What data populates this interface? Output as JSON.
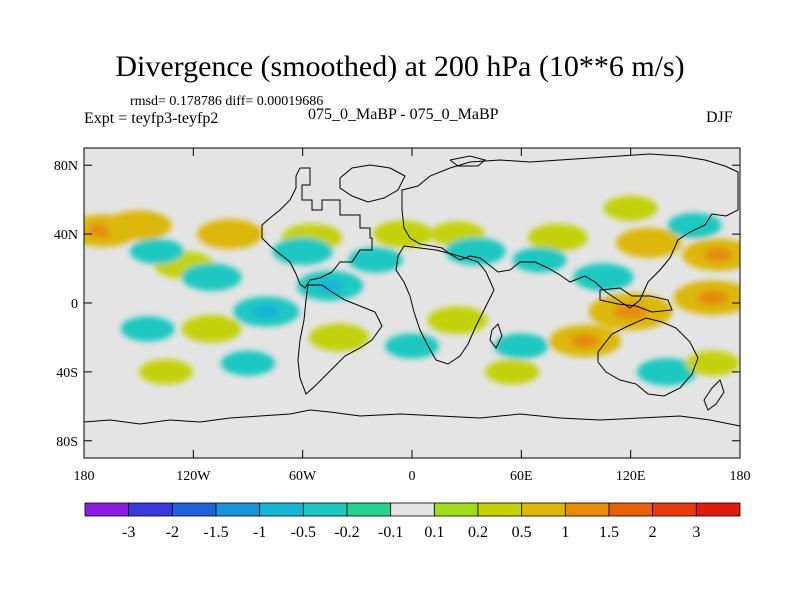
{
  "chart_data": {
    "type": "heatmap",
    "title": "Divergence (smoothed) at 200 hPa (10**6 m/s)",
    "subtitle_stats": "rmsd= 0.178786 diff= 0.00019686",
    "experiment": "Expt = teyfp3-teyfp2",
    "case_label": "075_0_MaBP - 075_0_MaBP",
    "season": "DJF",
    "x_axis": {
      "range": [
        -180,
        180
      ],
      "ticks": [
        -180,
        -120,
        -60,
        0,
        60,
        120,
        180
      ],
      "tick_labels": [
        "180",
        "120W",
        "60W",
        "0",
        "60E",
        "120E",
        "180"
      ]
    },
    "y_axis": {
      "range": [
        -90,
        90
      ],
      "ticks": [
        80,
        40,
        0,
        -40,
        -80
      ],
      "tick_labels": [
        "80N",
        "40N",
        "0",
        "40S",
        "80S"
      ]
    },
    "colorbar": {
      "levels": [
        "-3",
        "-2",
        "-1.5",
        "-1",
        "-0.5",
        "-0.2",
        "-0.1",
        "0.1",
        "0.2",
        "0.5",
        "1",
        "1.5",
        "2",
        "3"
      ],
      "colors": [
        "#8a1ee0",
        "#3a3adb",
        "#1e64d8",
        "#1a94d8",
        "#18b4d6",
        "#1ec8c0",
        "#28d28c",
        "#e4e4e4",
        "#9edc1c",
        "#c4d20a",
        "#dcb80c",
        "#e68c0a",
        "#e8620a",
        "#e83c0c",
        "#e01c10"
      ]
    },
    "field": [
      {
        "lon": -170,
        "lat": 42,
        "value": 0.6
      },
      {
        "lon": -150,
        "lat": 45,
        "value": 0.5
      },
      {
        "lon": -125,
        "lat": 22,
        "value": 0.4
      },
      {
        "lon": -100,
        "lat": 40,
        "value": 0.5
      },
      {
        "lon": -55,
        "lat": 38,
        "value": 0.4
      },
      {
        "lon": -5,
        "lat": 40,
        "value": 0.4
      },
      {
        "lon": 25,
        "lat": 40,
        "value": 0.3
      },
      {
        "lon": 80,
        "lat": 38,
        "value": 0.4
      },
      {
        "lon": 130,
        "lat": 35,
        "value": 0.5
      },
      {
        "lon": 168,
        "lat": 28,
        "value": 0.6
      },
      {
        "lon": 120,
        "lat": 55,
        "value": 0.3
      },
      {
        "lon": -140,
        "lat": 30,
        "value": -0.3
      },
      {
        "lon": -110,
        "lat": 15,
        "value": -0.4
      },
      {
        "lon": -60,
        "lat": 30,
        "value": -0.4
      },
      {
        "lon": -45,
        "lat": 10,
        "value": -0.5
      },
      {
        "lon": -20,
        "lat": 25,
        "value": -0.3
      },
      {
        "lon": 35,
        "lat": 30,
        "value": -0.4
      },
      {
        "lon": 70,
        "lat": 25,
        "value": -0.3
      },
      {
        "lon": 105,
        "lat": 15,
        "value": -0.4
      },
      {
        "lon": 155,
        "lat": 45,
        "value": -0.3
      },
      {
        "lon": 120,
        "lat": -5,
        "value": 0.8
      },
      {
        "lon": 165,
        "lat": 3,
        "value": 0.7
      },
      {
        "lon": 95,
        "lat": -22,
        "value": 0.6
      },
      {
        "lon": 25,
        "lat": -10,
        "value": 0.4
      },
      {
        "lon": -40,
        "lat": -20,
        "value": 0.4
      },
      {
        "lon": -110,
        "lat": -15,
        "value": 0.4
      },
      {
        "lon": 55,
        "lat": -40,
        "value": 0.3
      },
      {
        "lon": -80,
        "lat": -5,
        "value": -0.5
      },
      {
        "lon": -145,
        "lat": -15,
        "value": -0.3
      },
      {
        "lon": 60,
        "lat": -25,
        "value": -0.3
      },
      {
        "lon": 0,
        "lat": -25,
        "value": -0.3
      },
      {
        "lon": -90,
        "lat": -35,
        "value": -0.3
      },
      {
        "lon": 140,
        "lat": -40,
        "value": -0.4
      },
      {
        "lon": 165,
        "lat": -35,
        "value": 0.3
      },
      {
        "lon": -135,
        "lat": -40,
        "value": 0.3
      }
    ]
  }
}
